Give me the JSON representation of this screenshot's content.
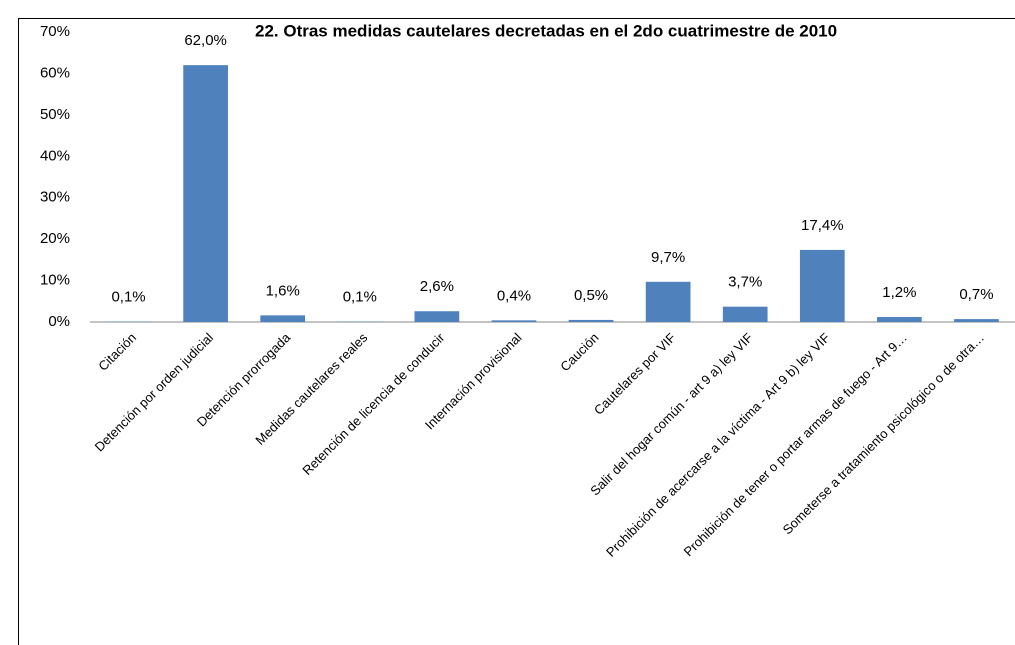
{
  "chart_data": {
    "type": "bar",
    "title": "22. Otras medidas cautelares decretadas en el 2do cuatrimestre de 2010",
    "categories": [
      "Citación",
      "Detención por orden judicial",
      "Detención prorrogada",
      "Medidas cautelares reales",
      "Retención de licencia de conducir",
      "Internación provisional",
      "Caución",
      "Cautelares por VIF",
      "Salir del hogar común - art 9 a) ley VIF",
      "Prohibición de acercarse a la víctima - Art 9 b) ley VIF",
      "Prohibición de tener o portar armas de fuego - Art 9…",
      "Someterse a tratamiento psicológico o de otra…"
    ],
    "values": [
      0.1,
      62.0,
      1.6,
      0.1,
      2.6,
      0.4,
      0.5,
      9.7,
      3.7,
      17.4,
      1.2,
      0.7
    ],
    "value_labels": [
      "0,1%",
      "62,0%",
      "1,6%",
      "0,1%",
      "2,6%",
      "0,4%",
      "0,5%",
      "9,7%",
      "3,7%",
      "17,4%",
      "1,2%",
      "0,7%"
    ],
    "color": "#4f81bd",
    "ylim": [
      0,
      70
    ],
    "yticks": [
      {
        "value": 0,
        "label": "0%"
      },
      {
        "value": 10,
        "label": "10%"
      },
      {
        "value": 20,
        "label": "20%"
      },
      {
        "value": 30,
        "label": "30%"
      },
      {
        "value": 40,
        "label": "40%"
      },
      {
        "value": 50,
        "label": "50%"
      },
      {
        "value": 60,
        "label": "60%"
      },
      {
        "value": 70,
        "label": "70%"
      }
    ],
    "grid": false
  }
}
